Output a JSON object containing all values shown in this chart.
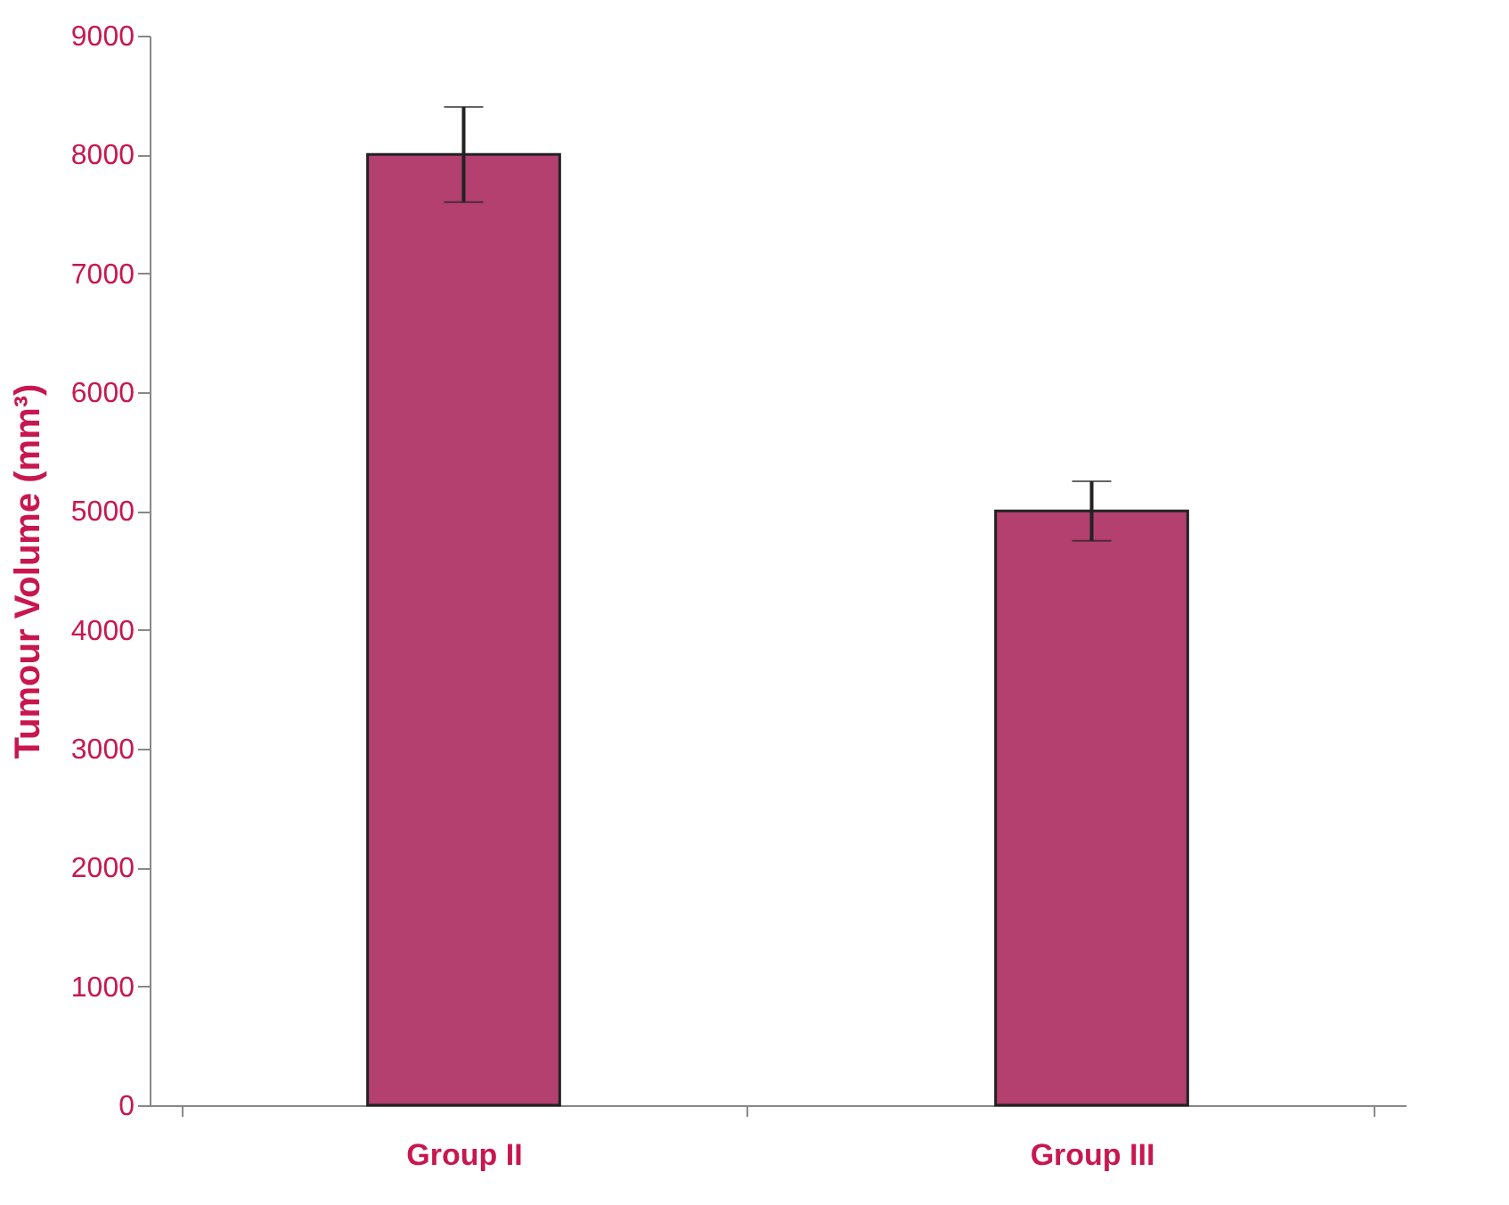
{
  "chart_data": {
    "type": "bar",
    "ylabel": "Tumour Volume (mm³)",
    "categories": [
      "Group II",
      "Group III"
    ],
    "values": [
      8000,
      5000
    ],
    "errors": [
      400,
      250
    ],
    "color": "#b3406f",
    "ylim": [
      0,
      9000
    ],
    "yticks": [
      0,
      1000,
      2000,
      3000,
      4000,
      5000,
      6000,
      7000,
      8000,
      9000
    ],
    "grid": false
  }
}
